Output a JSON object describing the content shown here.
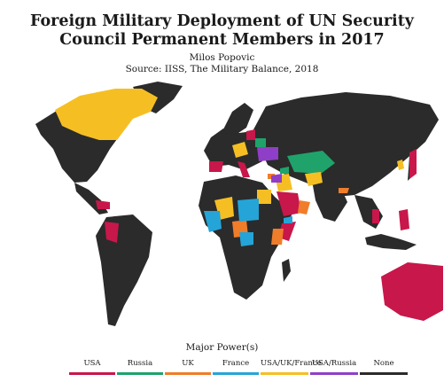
{
  "title": {
    "line1": "Foreign Military Deployment of UN Security",
    "line2": "Council Permanent Members in 2017"
  },
  "author": "Milos Popovic",
  "source": "Source: IISS, The Military Balance, 2018",
  "legend": {
    "title": "Major Power(s)",
    "items": [
      {
        "label": "USA",
        "color": "#c8174a"
      },
      {
        "label": "Russia",
        "color": "#1fa36b"
      },
      {
        "label": "UK",
        "color": "#f07d2a"
      },
      {
        "label": "France",
        "color": "#25a4d8"
      },
      {
        "label": "USA/UK/France",
        "color": "#f5bf24"
      },
      {
        "label": "USA/Russia",
        "color": "#8f3fc7"
      },
      {
        "label": "None",
        "color": "#2b2b2b"
      }
    ]
  },
  "colors": {
    "land": "#2b2b2b",
    "background": "#ffffff",
    "USA": "#c8174a",
    "Russia": "#1fa36b",
    "UK": "#f07d2a",
    "France": "#25a4d8",
    "USA_UK_France": "#f5bf24",
    "USA_Russia": "#8f3fc7"
  }
}
